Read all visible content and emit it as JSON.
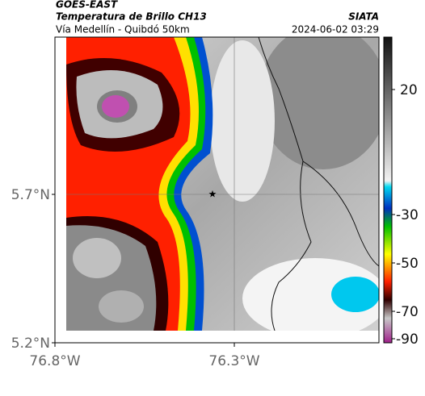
{
  "header": {
    "source": "GOES-EAST",
    "title": "Temperatura de Brillo CH13",
    "subtitle": "Vía Medellín - Quibdó 50km",
    "brand": "SIATA",
    "datetime": "2024-06-02 03:29"
  },
  "map": {
    "lat_labels": [
      "5.7°N",
      "5.2°N"
    ],
    "lon_labels": [
      "76.8°W",
      "76.3°W"
    ]
  },
  "colorbar": {
    "ticks": [
      20,
      -30,
      -50,
      -70,
      -90
    ]
  }
}
